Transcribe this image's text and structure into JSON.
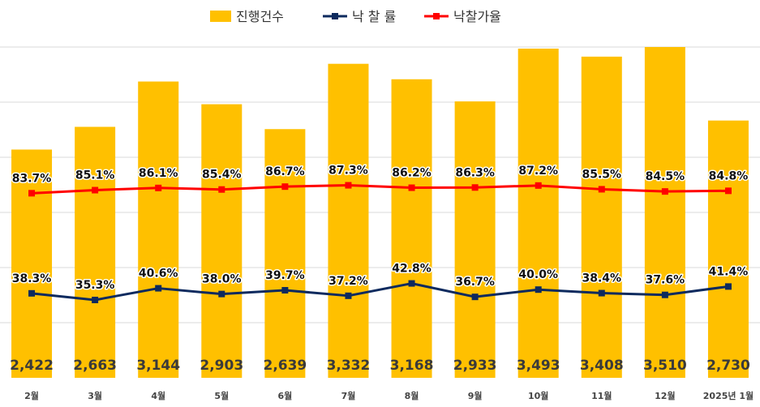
{
  "chart_data": {
    "type": "bar",
    "categories": [
      "2월",
      "3월",
      "4월",
      "5월",
      "6월",
      "7월",
      "8월",
      "9월",
      "10월",
      "11월",
      "12월",
      "2025년 1월"
    ],
    "series": [
      {
        "name": "진행건수",
        "type": "bar",
        "color": "#FFC000",
        "values": [
          2422,
          2663,
          3144,
          2903,
          2639,
          3332,
          3168,
          2933,
          3493,
          3408,
          3510,
          2730
        ],
        "labels": [
          "2,422",
          "2,663",
          "3,144",
          "2,903",
          "2,639",
          "3,332",
          "3,168",
          "2,933",
          "3,493",
          "3,408",
          "3,510",
          "2,730"
        ]
      },
      {
        "name": "낙 찰 률",
        "type": "line",
        "color": "#0D2A5E",
        "values": [
          38.3,
          35.3,
          40.6,
          38.0,
          39.7,
          37.2,
          42.8,
          36.7,
          40.0,
          38.4,
          37.6,
          41.4
        ],
        "labels": [
          "38.3%",
          "35.3%",
          "40.6%",
          "38.0%",
          "39.7%",
          "37.2%",
          "42.8%",
          "36.7%",
          "40.0%",
          "38.4%",
          "37.6%",
          "41.4%"
        ]
      },
      {
        "name": "낙찰가율",
        "type": "line",
        "color": "#FF0000",
        "values": [
          83.7,
          85.1,
          86.1,
          85.4,
          86.7,
          87.3,
          86.2,
          86.3,
          87.2,
          85.5,
          84.5,
          84.8
        ],
        "labels": [
          "83.7%",
          "85.1%",
          "86.1%",
          "85.4%",
          "86.7%",
          "87.3%",
          "86.2%",
          "86.3%",
          "87.2%",
          "85.5%",
          "84.5%",
          "84.8%"
        ]
      }
    ],
    "grid": true,
    "legend_position": "top-center"
  }
}
